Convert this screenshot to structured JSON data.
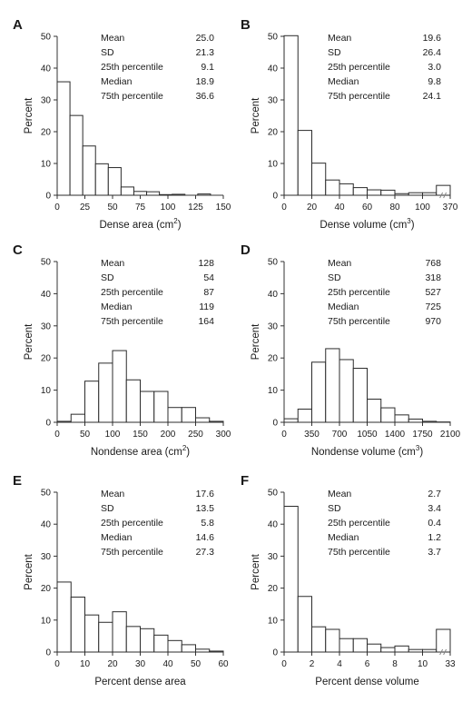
{
  "chart_data": [
    {
      "panel": "A",
      "type": "bar",
      "xlabel": "Dense area (cm",
      "xlabel_sup": "2",
      "xlabel_end": ")",
      "ylabel": "Percent",
      "ylim": [
        0,
        50
      ],
      "yticks": [
        "0",
        "10",
        "20",
        "30",
        "40",
        "50"
      ],
      "xticks": [
        "0",
        "25",
        "50",
        "75",
        "100",
        "125",
        "150"
      ],
      "bins": 13,
      "values": [
        35.7,
        25.1,
        15.5,
        9.9,
        8.7,
        2.6,
        1.2,
        1.1,
        0.2,
        0.3,
        0.0,
        0.4,
        0.0
      ],
      "stats": [
        {
          "label": "Mean",
          "value": "25.0"
        },
        {
          "label": "SD",
          "value": "21.3"
        },
        {
          "label": "25th percentile",
          "value": "9.1"
        },
        {
          "label": "Median",
          "value": "18.9"
        },
        {
          "label": "75th percentile",
          "value": "36.6"
        }
      ]
    },
    {
      "panel": "B",
      "type": "bar",
      "xlabel": "Dense volume (cm",
      "xlabel_sup": "3",
      "xlabel_end": ")",
      "ylabel": "Percent",
      "ylim": [
        0,
        50
      ],
      "yticks": [
        "0",
        "10",
        "20",
        "30",
        "40",
        "50"
      ],
      "xticks": [
        "0",
        "20",
        "40",
        "60",
        "80",
        "100",
        "370"
      ],
      "bins": 12,
      "values": [
        50.2,
        20.4,
        10.1,
        4.8,
        3.6,
        2.4,
        1.7,
        1.6,
        0.5,
        0.8,
        0.8,
        3.1
      ],
      "stats": [
        {
          "label": "Mean",
          "value": "19.6"
        },
        {
          "label": "SD",
          "value": "26.4"
        },
        {
          "label": "25th percentile",
          "value": "3.0"
        },
        {
          "label": "Median",
          "value": "9.8"
        },
        {
          "label": "75th percentile",
          "value": "24.1"
        }
      ]
    },
    {
      "panel": "C",
      "type": "bar",
      "xlabel": "Nondense area (cm",
      "xlabel_sup": "2",
      "xlabel_end": ")",
      "ylabel": "Percent",
      "ylim": [
        0,
        50
      ],
      "yticks": [
        "0",
        "10",
        "20",
        "30",
        "40",
        "50"
      ],
      "xticks": [
        "0",
        "50",
        "100",
        "150",
        "200",
        "250",
        "300"
      ],
      "bins": 12,
      "values": [
        0.3,
        2.5,
        12.8,
        18.4,
        22.3,
        13.2,
        9.6,
        9.6,
        4.6,
        4.6,
        1.4,
        0.3
      ],
      "stats": [
        {
          "label": "Mean",
          "value": "128"
        },
        {
          "label": "SD",
          "value": "54"
        },
        {
          "label": "25th percentile",
          "value": "87"
        },
        {
          "label": "Median",
          "value": "119"
        },
        {
          "label": "75th percentile",
          "value": "164"
        }
      ]
    },
    {
      "panel": "D",
      "type": "bar",
      "xlabel": "Nondense volume (cm",
      "xlabel_sup": "3",
      "xlabel_end": ")",
      "ylabel": "Percent",
      "ylim": [
        0,
        50
      ],
      "yticks": [
        "0",
        "10",
        "20",
        "30",
        "40",
        "50"
      ],
      "xticks": [
        "0",
        "350",
        "700",
        "1050",
        "1400",
        "1750",
        "2100"
      ],
      "bins": 12,
      "values": [
        1.1,
        4.1,
        18.7,
        22.9,
        19.5,
        16.8,
        7.2,
        4.5,
        2.3,
        1.0,
        0.3,
        0.1
      ],
      "stats": [
        {
          "label": "Mean",
          "value": "768"
        },
        {
          "label": "SD",
          "value": "318"
        },
        {
          "label": "25th percentile",
          "value": "527"
        },
        {
          "label": "Median",
          "value": "725"
        },
        {
          "label": "75th percentile",
          "value": "970"
        }
      ]
    },
    {
      "panel": "E",
      "type": "bar",
      "xlabel": "Percent dense area",
      "xlabel_sup": "",
      "xlabel_end": "",
      "ylabel": "Percent",
      "ylim": [
        0,
        50
      ],
      "yticks": [
        "0",
        "10",
        "20",
        "30",
        "40",
        "50"
      ],
      "xticks": [
        "0",
        "10",
        "20",
        "30",
        "40",
        "50",
        "60"
      ],
      "bins": 12,
      "values": [
        21.9,
        17.2,
        11.6,
        9.3,
        12.6,
        8.0,
        7.3,
        5.3,
        3.6,
        2.3,
        0.9,
        0.3
      ],
      "stats": [
        {
          "label": "Mean",
          "value": "17.6"
        },
        {
          "label": "SD",
          "value": "13.5"
        },
        {
          "label": "25th percentile",
          "value": "5.8"
        },
        {
          "label": "Median",
          "value": "14.6"
        },
        {
          "label": "75th percentile",
          "value": "27.3"
        }
      ]
    },
    {
      "panel": "F",
      "type": "bar",
      "xlabel": "Percent dense volume",
      "xlabel_sup": "",
      "xlabel_end": "",
      "ylabel": "Percent",
      "ylim": [
        0,
        50
      ],
      "yticks": [
        "0",
        "10",
        "20",
        "30",
        "40",
        "50"
      ],
      "xticks": [
        "0",
        "2",
        "4",
        "6",
        "8",
        "10",
        "33"
      ],
      "bins": 12,
      "values": [
        45.6,
        17.4,
        7.9,
        7.1,
        4.2,
        4.2,
        2.5,
        1.4,
        1.9,
        0.8,
        0.8,
        7.1
      ],
      "stats": [
        {
          "label": "Mean",
          "value": "2.7"
        },
        {
          "label": "SD",
          "value": "3.4"
        },
        {
          "label": "25th percentile",
          "value": "0.4"
        },
        {
          "label": "Median",
          "value": "1.2"
        },
        {
          "label": "75th percentile",
          "value": "3.7"
        }
      ]
    }
  ]
}
